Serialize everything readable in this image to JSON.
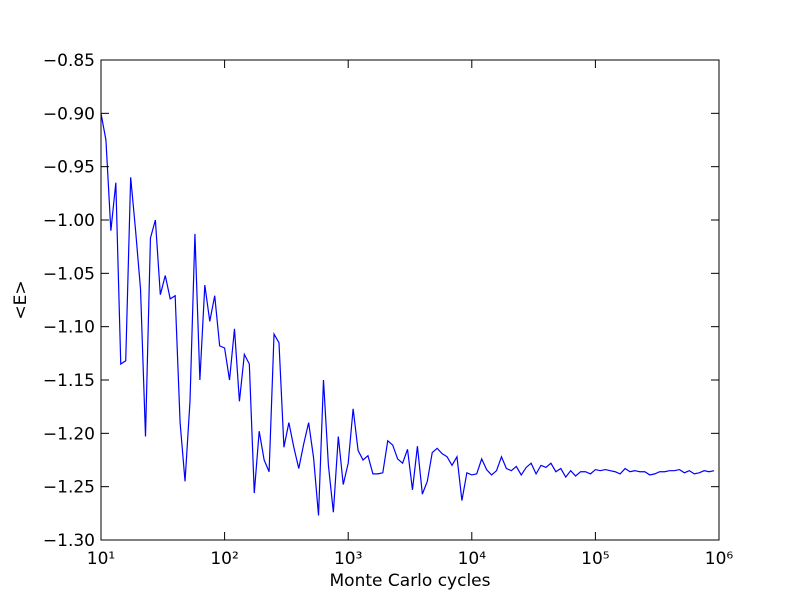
{
  "chart_data": {
    "type": "line",
    "xlabel": "Monte Carlo cycles",
    "ylabel": "<E>",
    "xscale": "log",
    "xlim": [
      10,
      1000000
    ],
    "ylim": [
      -1.3,
      -0.85
    ],
    "xticks": [
      {
        "value": 10,
        "label": "10¹"
      },
      {
        "value": 100,
        "label": "10²"
      },
      {
        "value": 1000,
        "label": "10³"
      },
      {
        "value": 10000,
        "label": "10⁴"
      },
      {
        "value": 100000,
        "label": "10⁵"
      },
      {
        "value": 1000000,
        "label": "10⁶"
      }
    ],
    "yticks": [
      {
        "value": -1.3,
        "label": "−1.30"
      },
      {
        "value": -1.25,
        "label": "−1.25"
      },
      {
        "value": -1.2,
        "label": "−1.20"
      },
      {
        "value": -1.15,
        "label": "−1.15"
      },
      {
        "value": -1.1,
        "label": "−1.10"
      },
      {
        "value": -1.05,
        "label": "−1.05"
      },
      {
        "value": -1.0,
        "label": "−1.00"
      },
      {
        "value": -0.95,
        "label": "−0.95"
      },
      {
        "value": -0.9,
        "label": "−0.90"
      },
      {
        "value": -0.85,
        "label": "−0.85"
      }
    ],
    "x": [
      10,
      10.96,
      12.02,
      13.18,
      14.45,
      15.85,
      17.38,
      19.05,
      20.89,
      22.91,
      25.12,
      27.54,
      30.2,
      33.11,
      36.31,
      39.81,
      43.65,
      47.86,
      52.48,
      57.54,
      63.1,
      69.18,
      75.86,
      83.18,
      91.2,
      100,
      109.6,
      120.2,
      131.8,
      144.5,
      158.5,
      173.8,
      190.5,
      208.9,
      229.1,
      251.2,
      275.4,
      302,
      331.1,
      363.1,
      398.1,
      436.5,
      478.6,
      524.8,
      575.4,
      631,
      691.8,
      758.6,
      831.8,
      912,
      1000,
      1096,
      1202,
      1318,
      1445,
      1585,
      1738,
      1905,
      2089,
      2291,
      2512,
      2754,
      3020,
      3311,
      3631,
      3981,
      4365,
      4786,
      5248,
      5754,
      6310,
      6918,
      7586,
      8318,
      9120,
      10000,
      10960,
      12020,
      13180,
      14450,
      15850,
      17380,
      19050,
      20890,
      22910,
      25120,
      27540,
      30200,
      33110,
      36310,
      39810,
      43650,
      47860,
      52480,
      57540,
      63100,
      69180,
      75860,
      83180,
      91200,
      100000,
      109600,
      120200,
      131800,
      144500,
      158500,
      173800,
      190500,
      208900,
      229100,
      251200,
      275400,
      302000,
      331100,
      363100,
      398100,
      436500,
      478600,
      524800,
      575400,
      631000,
      691800,
      758600,
      831800,
      912000
    ],
    "series": [
      {
        "color": "#0000ff",
        "values": [
          -0.9,
          -0.925,
          -1.01,
          -0.965,
          -1.135,
          -1.132,
          -0.96,
          -1.01,
          -1.065,
          -1.203,
          -1.017,
          -1.0,
          -1.07,
          -1.052,
          -1.074,
          -1.071,
          -1.19,
          -1.245,
          -1.17,
          -1.013,
          -1.15,
          -1.061,
          -1.095,
          -1.071,
          -1.118,
          -1.12,
          -1.15,
          -1.102,
          -1.17,
          -1.126,
          -1.135,
          -1.256,
          -1.198,
          -1.225,
          -1.236,
          -1.107,
          -1.115,
          -1.213,
          -1.19,
          -1.213,
          -1.233,
          -1.21,
          -1.19,
          -1.223,
          -1.277,
          -1.15,
          -1.23,
          -1.274,
          -1.203,
          -1.248,
          -1.228,
          -1.177,
          -1.216,
          -1.225,
          -1.221,
          -1.238,
          -1.238,
          -1.237,
          -1.207,
          -1.211,
          -1.224,
          -1.228,
          -1.215,
          -1.253,
          -1.212,
          -1.257,
          -1.245,
          -1.218,
          -1.214,
          -1.219,
          -1.222,
          -1.23,
          -1.222,
          -1.263,
          -1.237,
          -1.239,
          -1.238,
          -1.224,
          -1.234,
          -1.239,
          -1.235,
          -1.222,
          -1.233,
          -1.235,
          -1.231,
          -1.239,
          -1.232,
          -1.228,
          -1.238,
          -1.23,
          -1.232,
          -1.228,
          -1.236,
          -1.233,
          -1.241,
          -1.235,
          -1.24,
          -1.236,
          -1.236,
          -1.238,
          -1.234,
          -1.235,
          -1.234,
          -1.235,
          -1.236,
          -1.238,
          -1.233,
          -1.236,
          -1.235,
          -1.236,
          -1.236,
          -1.239,
          -1.238,
          -1.236,
          -1.236,
          -1.235,
          -1.235,
          -1.234,
          -1.237,
          -1.235,
          -1.238,
          -1.237,
          -1.235,
          -1.236,
          -1.235
        ]
      }
    ]
  }
}
